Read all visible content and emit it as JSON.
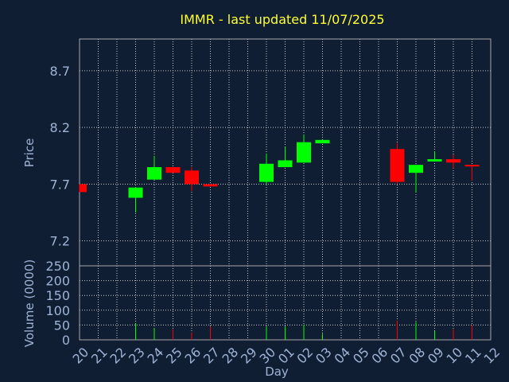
{
  "title": "IMMR - last updated 11/07/2025",
  "colors": {
    "background": "#0f1e33",
    "up": "#00ff00",
    "down": "#ff0000",
    "title": "#ffff33",
    "text": "#9fb3d6"
  },
  "chart_data": {
    "type": "candlestick",
    "price_panel": {
      "ylabel": "Price",
      "yticks": [
        "7.2",
        "7.7",
        "8.2",
        "8.7"
      ],
      "yrange": [
        6.98,
        8.98
      ],
      "grid": true
    },
    "volume_panel": {
      "ylabel": "Volume (0000)",
      "yticks": [
        "0",
        "50",
        "100",
        "150",
        "200",
        "250"
      ],
      "yrange": [
        0,
        250
      ],
      "grid": true
    },
    "xlabel": "Day",
    "xticks": [
      "20",
      "21",
      "22",
      "23",
      "24",
      "25",
      "26",
      "27",
      "28",
      "29",
      "30",
      "01",
      "02",
      "03",
      "04",
      "05",
      "06",
      "07",
      "08",
      "09",
      "10",
      "11",
      "12"
    ],
    "candles": [
      {
        "day": "20",
        "open": 7.7,
        "close": 7.63,
        "high": 7.7,
        "low": 7.63,
        "volume": 0
      },
      {
        "day": "23",
        "open": 7.58,
        "close": 7.67,
        "high": 7.67,
        "low": 7.45,
        "volume": 55
      },
      {
        "day": "24",
        "open": 7.74,
        "close": 7.85,
        "high": 7.95,
        "low": 7.74,
        "volume": 40
      },
      {
        "day": "25",
        "open": 7.85,
        "close": 7.8,
        "high": 7.85,
        "low": 7.8,
        "volume": 35
      },
      {
        "day": "26",
        "open": 7.82,
        "close": 7.7,
        "high": 7.85,
        "low": 7.64,
        "volume": 25
      },
      {
        "day": "27",
        "open": 7.7,
        "close": 7.68,
        "high": 7.7,
        "low": 7.68,
        "volume": 45
      },
      {
        "day": "30",
        "open": 7.72,
        "close": 7.88,
        "high": 7.97,
        "low": 7.7,
        "volume": 45
      },
      {
        "day": "01",
        "open": 7.85,
        "close": 7.91,
        "high": 8.03,
        "low": 7.85,
        "volume": 45
      },
      {
        "day": "02",
        "open": 7.89,
        "close": 8.07,
        "high": 8.14,
        "low": 7.89,
        "volume": 50
      },
      {
        "day": "03",
        "open": 8.06,
        "close": 8.09,
        "high": 8.09,
        "low": 8.06,
        "volume": 20
      },
      {
        "day": "07",
        "open": 8.01,
        "close": 7.72,
        "high": 8.06,
        "low": 7.7,
        "volume": 65
      },
      {
        "day": "08",
        "open": 7.8,
        "close": 7.87,
        "high": 7.87,
        "low": 7.63,
        "volume": 60
      },
      {
        "day": "09",
        "open": 7.9,
        "close": 7.92,
        "high": 7.99,
        "low": 7.9,
        "volume": 30
      },
      {
        "day": "10",
        "open": 7.92,
        "close": 7.89,
        "high": 7.96,
        "low": 7.84,
        "volume": 35
      },
      {
        "day": "11",
        "open": 7.87,
        "close": 7.86,
        "high": 7.87,
        "low": 7.73,
        "volume": 50
      }
    ]
  }
}
